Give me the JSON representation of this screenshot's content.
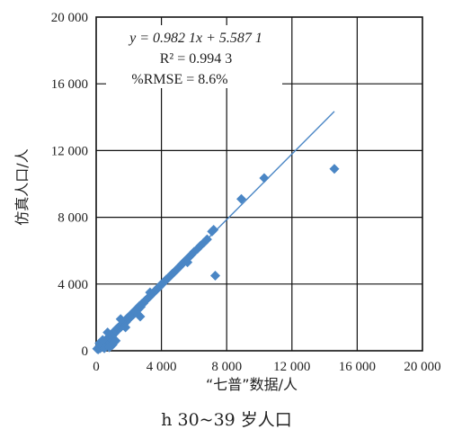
{
  "chart_data": {
    "type": "scatter",
    "xlabel": "“七普”数据/人",
    "ylabel": "仿真人口/人",
    "xlim": [
      0,
      20000
    ],
    "ylim": [
      0,
      20000
    ],
    "xticks": [
      "0",
      "4 000",
      "8 000",
      "12 000",
      "16 000",
      "20 000"
    ],
    "yticks": [
      "0",
      "4 000",
      "8 000",
      "12 000",
      "16 000",
      "20 000"
    ],
    "grid": true,
    "marker_color": "#4a86c5",
    "fit_line": {
      "slope": 0.9821,
      "intercept": 5.5871,
      "x_range": [
        0,
        14600
      ],
      "color": "#4a86c5"
    },
    "annotations": {
      "equation": "y = 0.982 1x + 5.587 1",
      "r2": "R² = 0.994 3",
      "rmse": "%RMSE = 8.6%"
    },
    "points": [
      [
        60,
        120
      ],
      [
        120,
        80
      ],
      [
        180,
        240
      ],
      [
        250,
        150
      ],
      [
        300,
        330
      ],
      [
        350,
        260
      ],
      [
        420,
        480
      ],
      [
        480,
        380
      ],
      [
        550,
        590
      ],
      [
        600,
        520
      ],
      [
        650,
        700
      ],
      [
        720,
        640
      ],
      [
        780,
        820
      ],
      [
        850,
        760
      ],
      [
        900,
        950
      ],
      [
        980,
        880
      ],
      [
        1050,
        1100
      ],
      [
        1100,
        1020
      ],
      [
        1180,
        1230
      ],
      [
        1250,
        1170
      ],
      [
        1300,
        1350
      ],
      [
        1380,
        1300
      ],
      [
        1450,
        1480
      ],
      [
        1520,
        1420
      ],
      [
        1600,
        1620
      ],
      [
        1680,
        1560
      ],
      [
        1750,
        1780
      ],
      [
        1830,
        1720
      ],
      [
        1900,
        1950
      ],
      [
        1980,
        1900
      ],
      [
        2050,
        2080
      ],
      [
        2120,
        2020
      ],
      [
        2200,
        2230
      ],
      [
        2280,
        2170
      ],
      [
        2350,
        2380
      ],
      [
        2430,
        2330
      ],
      [
        2500,
        2520
      ],
      [
        2580,
        2480
      ],
      [
        2650,
        2680
      ],
      [
        2730,
        2630
      ],
      [
        2800,
        2820
      ],
      [
        2900,
        2850
      ],
      [
        3000,
        3000
      ],
      [
        3100,
        3080
      ],
      [
        3200,
        3180
      ],
      [
        3300,
        3270
      ],
      [
        3400,
        3380
      ],
      [
        3500,
        3470
      ],
      [
        3600,
        3580
      ],
      [
        3700,
        3660
      ],
      [
        3800,
        3780
      ],
      [
        3900,
        3850
      ],
      [
        4000,
        3980
      ],
      [
        4100,
        4080
      ],
      [
        4200,
        4150
      ],
      [
        4300,
        4270
      ],
      [
        4400,
        4350
      ],
      [
        4500,
        4440
      ],
      [
        4650,
        4600
      ],
      [
        4800,
        4730
      ],
      [
        4950,
        4880
      ],
      [
        5100,
        5030
      ],
      [
        5250,
        5180
      ],
      [
        5400,
        5330
      ],
      [
        5550,
        5480
      ],
      [
        5700,
        5620
      ],
      [
        5850,
        5770
      ],
      [
        6000,
        5930
      ],
      [
        6200,
        6100
      ],
      [
        6400,
        6300
      ],
      [
        6600,
        6480
      ],
      [
        6800,
        6680
      ],
      [
        7100,
        7150
      ],
      [
        7200,
        7250
      ],
      [
        500,
        150
      ],
      [
        800,
        200
      ],
      [
        1000,
        350
      ],
      [
        1200,
        600
      ],
      [
        2700,
        2050
      ],
      [
        7300,
        4500
      ],
      [
        8900,
        9100
      ],
      [
        10300,
        10350
      ],
      [
        14600,
        10900
      ],
      [
        200,
        450
      ],
      [
        400,
        650
      ],
      [
        700,
        1100
      ],
      [
        1500,
        1900
      ],
      [
        900,
        300
      ],
      [
        1100,
        500
      ],
      [
        1800,
        1400
      ],
      [
        3300,
        3500
      ],
      [
        5600,
        5300
      ]
    ]
  },
  "caption": "h 30~39 岁人口"
}
